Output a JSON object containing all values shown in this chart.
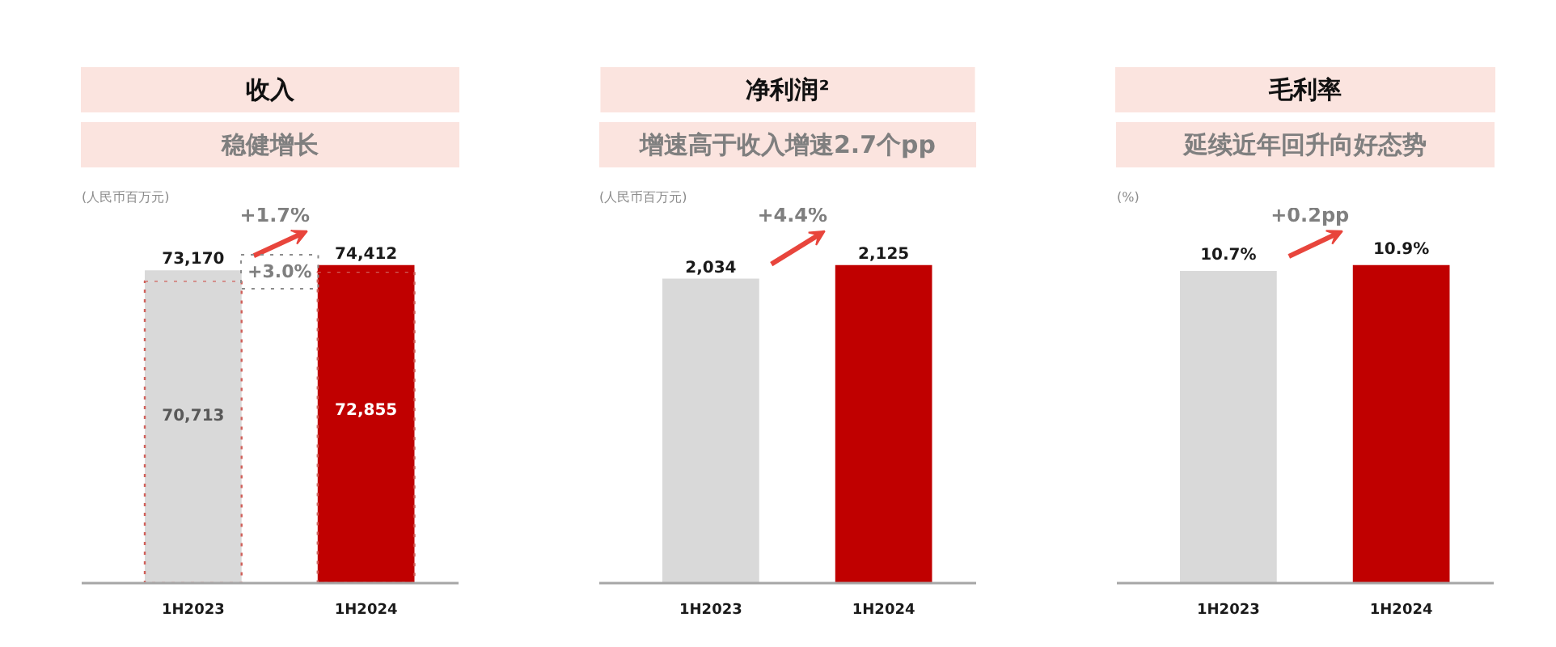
{
  "chart_data": [
    {
      "type": "bar",
      "title": "收入",
      "subtitle": "稳健增长",
      "ylabel": "(人民币百万元)",
      "categories": [
        "1H2023",
        "1H2024"
      ],
      "stacked": true,
      "series": [
        {
          "values": [
            70713,
            72855
          ],
          "colors": [
            "#d9d9d9",
            "#c00000"
          ],
          "value_labels": [
            "70,713",
            "72,855"
          ],
          "line_style": "dotted"
        },
        {
          "values": [
            2457,
            1557
          ],
          "colors": [
            "#d9d9d9",
            "#c00000"
          ]
        }
      ],
      "totals": [
        "73,170",
        "74,412"
      ],
      "annotations": [
        "+1.7%",
        "+3.0%"
      ],
      "tick_labels": "x"
    },
    {
      "type": "bar",
      "title": "净利润²",
      "subtitle": "增速高于收入增速2.7个pp",
      "ylabel": "(人民币百万元)",
      "categories": [
        "1H2023",
        "1H2024"
      ],
      "values": [
        2034,
        2125
      ],
      "colors": [
        "#d9d9d9",
        "#c00000"
      ],
      "value_labels": [
        "2,034",
        "2,125"
      ],
      "annotations": [
        "+4.4%"
      ],
      "tick_labels": "x"
    },
    {
      "type": "bar",
      "title": "毛利率",
      "subtitle": "延续近年回升向好态势",
      "ylabel": "(%)",
      "categories": [
        "1H2023",
        "1H2024"
      ],
      "values": [
        10.7,
        10.9
      ],
      "colors": [
        "#d9d9d9",
        "#c00000"
      ],
      "value_labels": [
        "10.7%",
        "10.9%"
      ],
      "annotations": [
        "+0.2pp"
      ],
      "tick_labels": "x"
    }
  ]
}
